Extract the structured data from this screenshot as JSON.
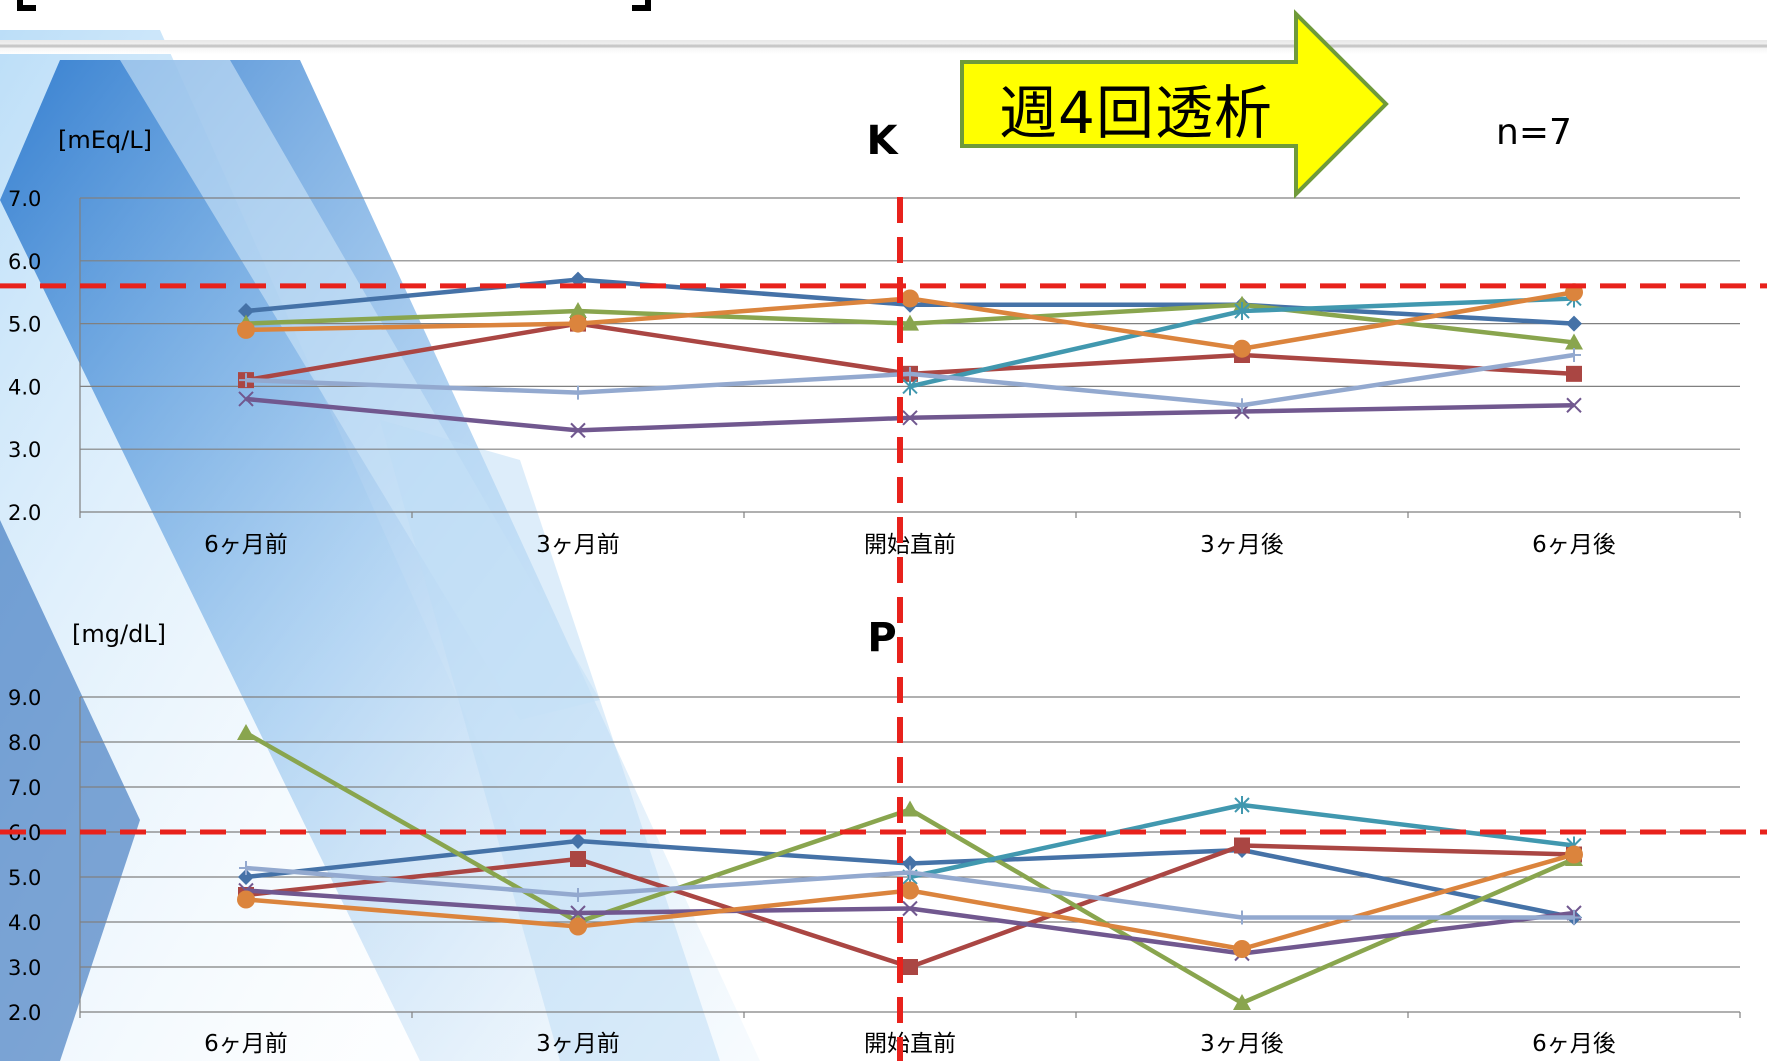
{
  "banner": {
    "label": "週4回透析"
  },
  "sample_size": "n=7",
  "colors": {
    "threshold_line": "#e8221c",
    "banner_fill": "#ffff00",
    "banner_border": "#6f9a3a",
    "grid": "#808080"
  },
  "chart_data": [
    {
      "type": "line",
      "title": "K",
      "ylabel": "[mEq/L]",
      "categories": [
        "6ヶ月前",
        "3ヶ月前",
        "開始直前",
        "3ヶ月後",
        "6ヶ月後"
      ],
      "ylim": [
        2.0,
        7.0
      ],
      "yticks": [
        "2.0",
        "3.0",
        "4.0",
        "5.0",
        "6.0",
        "7.0"
      ],
      "threshold": 5.6,
      "grid": true,
      "series": [
        {
          "values": [
            5.2,
            5.7,
            5.3,
            5.3,
            5.0
          ],
          "color": "#4572a7",
          "marker": "diamond"
        },
        {
          "values": [
            4.1,
            5.0,
            4.2,
            4.5,
            4.2
          ],
          "color": "#aa4643",
          "marker": "square"
        },
        {
          "values": [
            5.0,
            5.2,
            5.0,
            5.3,
            4.7
          ],
          "color": "#89a54e",
          "marker": "triangle"
        },
        {
          "values": [
            3.8,
            3.3,
            3.5,
            3.6,
            3.7
          ],
          "color": "#71588f",
          "marker": "x"
        },
        {
          "values": [
            null,
            null,
            4.0,
            5.2,
            5.4
          ],
          "color": "#4198af",
          "marker": "star"
        },
        {
          "values": [
            4.9,
            5.0,
            5.4,
            4.6,
            5.5
          ],
          "color": "#db843d",
          "marker": "circle"
        },
        {
          "values": [
            4.1,
            3.9,
            4.2,
            3.7,
            4.5
          ],
          "color": "#93a9cf",
          "marker": "plus"
        }
      ]
    },
    {
      "type": "line",
      "title": "P",
      "ylabel": "[mg/dL]",
      "categories": [
        "6ヶ月前",
        "3ヶ月前",
        "開始直前",
        "3ヶ月後",
        "6ヶ月後"
      ],
      "ylim": [
        2.0,
        9.0
      ],
      "yticks": [
        "2.0",
        "3.0",
        "4.0",
        "5.0",
        "6.0",
        "7.0",
        "8.0",
        "9.0"
      ],
      "threshold": 6.0,
      "grid": true,
      "series": [
        {
          "values": [
            5.0,
            5.8,
            5.3,
            5.6,
            4.1
          ],
          "color": "#4572a7",
          "marker": "diamond"
        },
        {
          "values": [
            4.6,
            5.4,
            3.0,
            5.7,
            5.5
          ],
          "color": "#aa4643",
          "marker": "square"
        },
        {
          "values": [
            8.2,
            4.0,
            6.5,
            2.2,
            5.4
          ],
          "color": "#89a54e",
          "marker": "triangle"
        },
        {
          "values": [
            4.7,
            4.2,
            4.3,
            3.3,
            4.2
          ],
          "color": "#71588f",
          "marker": "x"
        },
        {
          "values": [
            null,
            null,
            5.0,
            6.6,
            5.7
          ],
          "color": "#4198af",
          "marker": "star"
        },
        {
          "values": [
            4.5,
            3.9,
            4.7,
            3.4,
            5.5
          ],
          "color": "#db843d",
          "marker": "circle"
        },
        {
          "values": [
            5.2,
            4.6,
            5.1,
            4.1,
            4.1
          ],
          "color": "#93a9cf",
          "marker": "plus"
        }
      ]
    }
  ]
}
